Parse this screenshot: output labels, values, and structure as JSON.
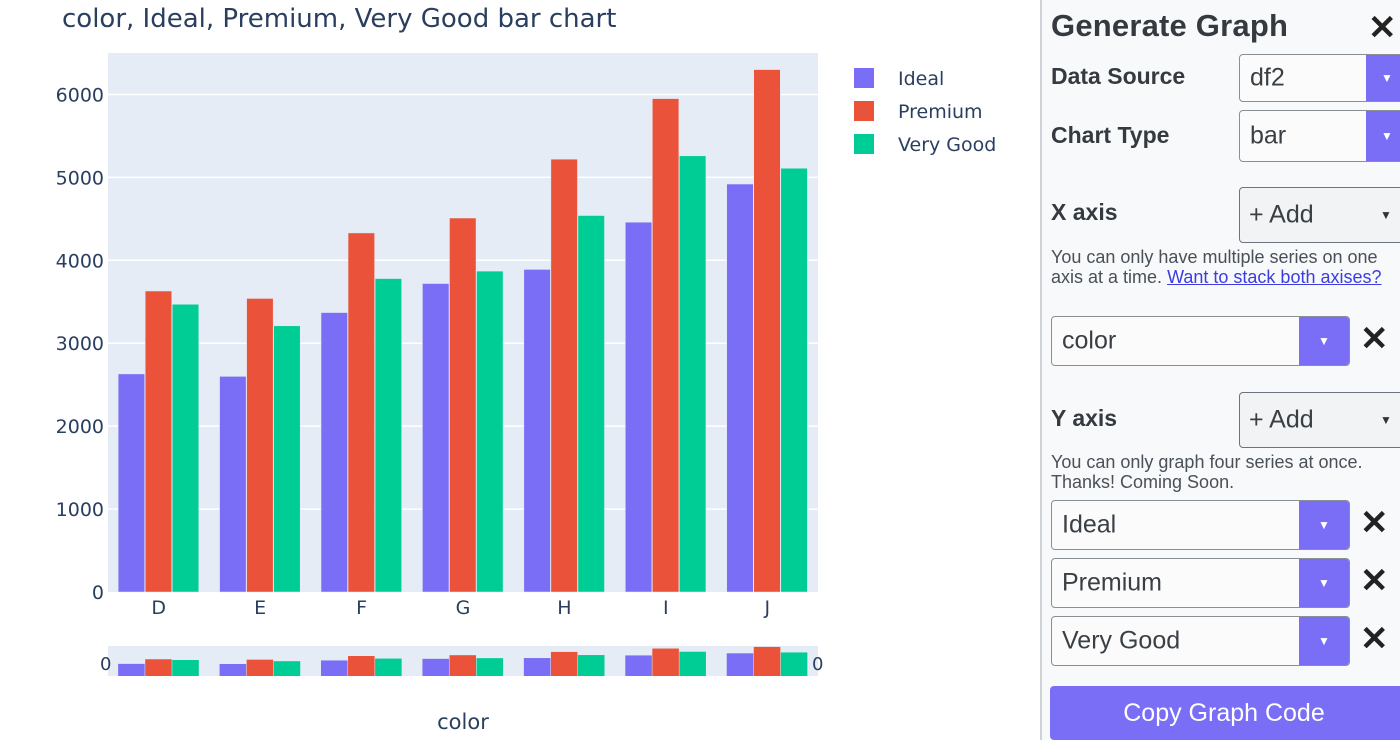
{
  "chart_data": {
    "type": "bar",
    "title": "color, Ideal, Premium, Very Good bar chart",
    "xlabel": "color",
    "ylabel": "",
    "categories": [
      "D",
      "E",
      "F",
      "G",
      "H",
      "I",
      "J"
    ],
    "series": [
      {
        "name": "Ideal",
        "color": "#7b6ef6",
        "values": [
          2630,
          2600,
          3370,
          3720,
          3890,
          4460,
          4920
        ]
      },
      {
        "name": "Premium",
        "color": "#ea5339",
        "values": [
          3630,
          3540,
          4330,
          4510,
          5220,
          5950,
          6300
        ]
      },
      {
        "name": "Very Good",
        "color": "#00cc96",
        "values": [
          3470,
          3210,
          3780,
          3870,
          4540,
          5260,
          5110
        ]
      }
    ],
    "ylim": [
      0,
      6500
    ],
    "yticks": [
      "0",
      "1000",
      "2000",
      "3000",
      "4000",
      "5000",
      "6000"
    ],
    "grid": true,
    "legend_position": "top-right",
    "rangeslider": {
      "left_label": "0",
      "right_label": "0"
    }
  },
  "panel": {
    "title": "Generate Graph",
    "close_glyph": "✕",
    "data_source_label": "Data Source",
    "data_source_value": "df2",
    "chart_type_label": "Chart Type",
    "chart_type_value": "bar",
    "x_axis_label": "X axis",
    "x_add_label": "+ Add",
    "x_note": "You can only have multiple series on one axis at a time.",
    "x_note_link": "Want to stack both axises?",
    "x_selected": [
      "color"
    ],
    "y_axis_label": "Y axis",
    "y_add_label": "+ Add",
    "y_note": "You can only graph four series at once. Thanks! Coming Soon.",
    "y_selected": [
      "Ideal",
      "Premium",
      "Very Good"
    ],
    "copy_button": "Copy Graph Code",
    "remove_glyph": "✕",
    "dropdown_glyph": "▼"
  }
}
